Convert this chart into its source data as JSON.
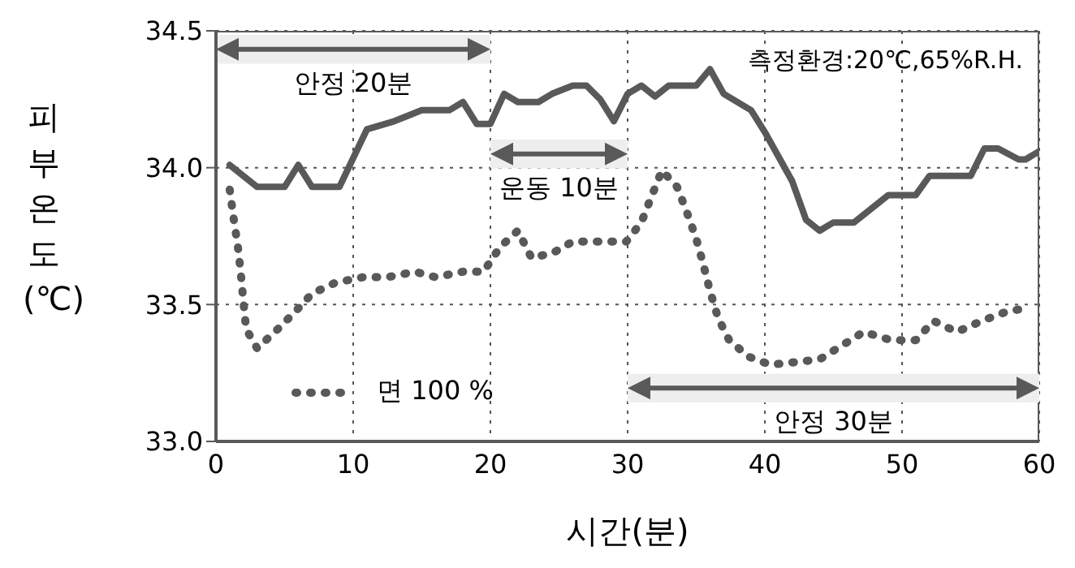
{
  "chart_data": {
    "type": "line",
    "xlabel": "시간(분)",
    "ylabel": "피부온도 (℃)",
    "xlim": [
      0,
      60
    ],
    "xticks": [
      0,
      10,
      20,
      30,
      40,
      50,
      60
    ],
    "ylim": [
      33.0,
      34.5
    ],
    "yticks": [
      {
        "value": 33.0,
        "label": "33.0"
      },
      {
        "value": 33.5,
        "label": "33.5"
      },
      {
        "value": 34.0,
        "label": "34.0"
      },
      {
        "value": 34.5,
        "label": "34.5"
      }
    ],
    "grid": true,
    "legend": "bottom left",
    "marker": "none",
    "series": [
      {
        "color": "#595959",
        "line_style": "solid",
        "x": [
          1,
          3,
          5,
          6,
          7,
          9,
          11,
          13,
          15,
          17,
          18,
          19,
          20,
          21,
          22,
          23.5,
          24.5,
          26,
          27,
          28,
          29,
          30,
          31,
          32,
          33,
          35,
          36,
          37,
          39,
          40,
          42,
          43,
          44,
          45,
          46.5,
          49,
          51,
          52,
          55,
          56,
          57,
          58.5,
          59,
          60
        ],
        "values": [
          34.01,
          33.93,
          33.93,
          34.01,
          33.93,
          33.93,
          34.14,
          34.17,
          34.21,
          34.21,
          34.24,
          34.16,
          34.16,
          34.27,
          34.24,
          34.24,
          34.27,
          34.3,
          34.3,
          34.25,
          34.17,
          34.27,
          34.3,
          34.26,
          34.3,
          34.3,
          34.36,
          34.27,
          34.21,
          34.13,
          33.95,
          33.81,
          33.77,
          33.8,
          33.8,
          33.9,
          33.9,
          33.97,
          33.97,
          34.07,
          34.07,
          34.03,
          34.03,
          34.06
        ]
      },
      {
        "name": "면 100 %",
        "color": "#595959",
        "line_style": "dotted",
        "x": [
          1,
          1.3,
          1.6,
          1.8,
          2,
          2.2,
          3,
          4.5,
          5.7,
          7,
          8.7,
          10.7,
          12.5,
          14.5,
          16,
          18,
          19.5,
          20.7,
          22,
          23,
          24.6,
          26,
          27.8,
          29.9,
          31,
          31.7,
          32.5,
          33.6,
          34.3,
          35,
          35.5,
          36,
          36.6,
          37.4,
          38.8,
          40.4,
          42.3,
          44,
          45.6,
          47.2,
          49.2,
          51,
          52.3,
          54,
          55.8,
          57.4,
          59.2
        ],
        "values": [
          33.92,
          33.81,
          33.71,
          33.62,
          33.51,
          33.41,
          33.34,
          33.41,
          33.47,
          33.54,
          33.58,
          33.6,
          33.6,
          33.62,
          33.6,
          33.62,
          33.62,
          33.71,
          33.77,
          33.67,
          33.69,
          33.73,
          33.73,
          33.73,
          33.8,
          33.89,
          33.99,
          33.93,
          33.84,
          33.74,
          33.65,
          33.55,
          33.45,
          33.37,
          33.31,
          33.28,
          33.29,
          33.3,
          33.35,
          33.4,
          33.37,
          33.37,
          33.44,
          33.4,
          33.44,
          33.47,
          33.49
        ]
      }
    ],
    "bands": [
      {
        "axis": "x",
        "from": 0,
        "to": 20,
        "label": "안정 20분"
      },
      {
        "axis": "x",
        "from": 20,
        "to": 30,
        "label": "운동 10분"
      },
      {
        "axis": "x",
        "from": 30,
        "to": 60,
        "label": "안정 30분"
      }
    ],
    "annotations": [
      "측정환경:20℃,65%R.H."
    ]
  }
}
